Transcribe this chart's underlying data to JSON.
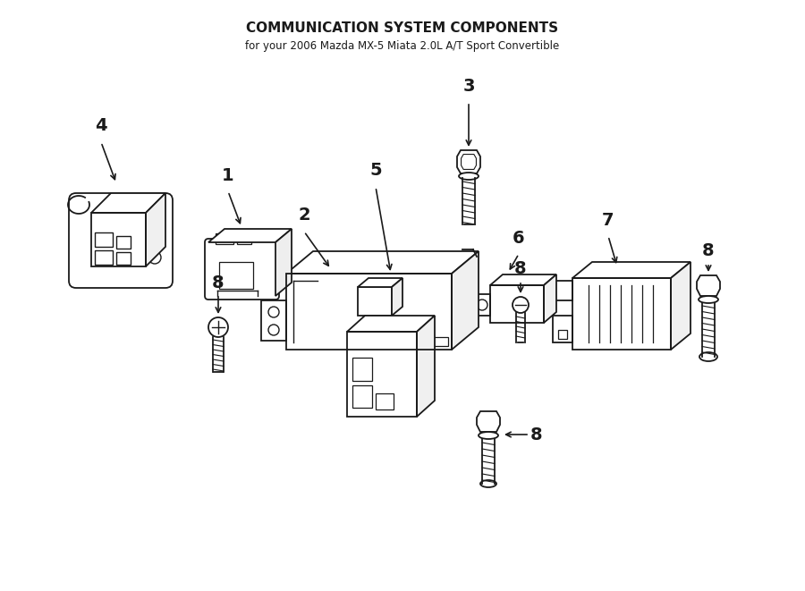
{
  "bg_color": "#ffffff",
  "line_color": "#1a1a1a",
  "fig_width": 9.0,
  "fig_height": 6.61,
  "dpi": 100,
  "title": "COMMUNICATION SYSTEM COMPONENTS",
  "subtitle": "for your 2006 Mazda MX-5 Miata 2.0L A/T Sport Convertible",
  "title_fontsize": 11,
  "subtitle_fontsize": 8.5,
  "label_fontsize": 14
}
